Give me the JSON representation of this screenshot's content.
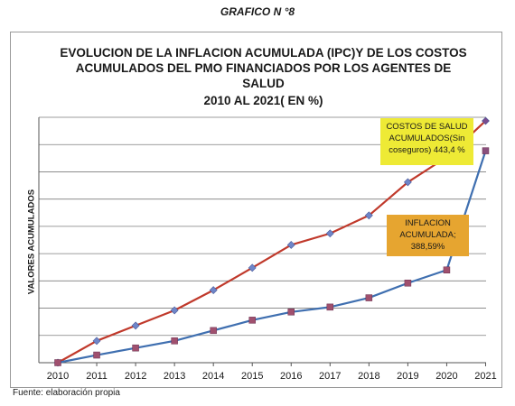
{
  "figure": {
    "heading": "GRAFICO N °8"
  },
  "chart_data": {
    "type": "line",
    "title_lines": [
      "EVOLUCION DE LA INFLACION ACUMULADA (IPC)Y DE LOS COSTOS",
      "ACUMULADOS DEL PMO FINANCIADOS POR LOS AGENTES DE",
      "SALUD",
      "2010 AL 2021( EN %)"
    ],
    "ylabel": "VALORES ACUMULADOS",
    "xlabel": "",
    "x": [
      "2010",
      "2011",
      "2012",
      "2013",
      "2014",
      "2015",
      "2016",
      "2017",
      "2018",
      "2019",
      "2020",
      "2021"
    ],
    "ylim": [
      0,
      450
    ],
    "grid": true,
    "series": [
      {
        "key": "costos",
        "color": "#c0392b",
        "values": [
          0,
          40,
          68,
          96,
          133,
          174,
          216,
          237,
          270,
          331,
          377,
          443.4
        ]
      },
      {
        "key": "inflacion",
        "color": "#3f6fb0",
        "values": [
          0,
          14,
          27,
          40,
          59,
          78,
          93,
          102,
          119,
          146,
          170,
          388.59
        ]
      }
    ],
    "annotations": {
      "costos": [
        "COSTOS DE SALUD",
        "ACUMULADOS(Sin",
        "coseguros) 443,4 %"
      ],
      "inflacion": [
        "INFLACION",
        "ACUMULADA;",
        "388,59%"
      ]
    }
  },
  "source": "Fuente: elaboración propia"
}
